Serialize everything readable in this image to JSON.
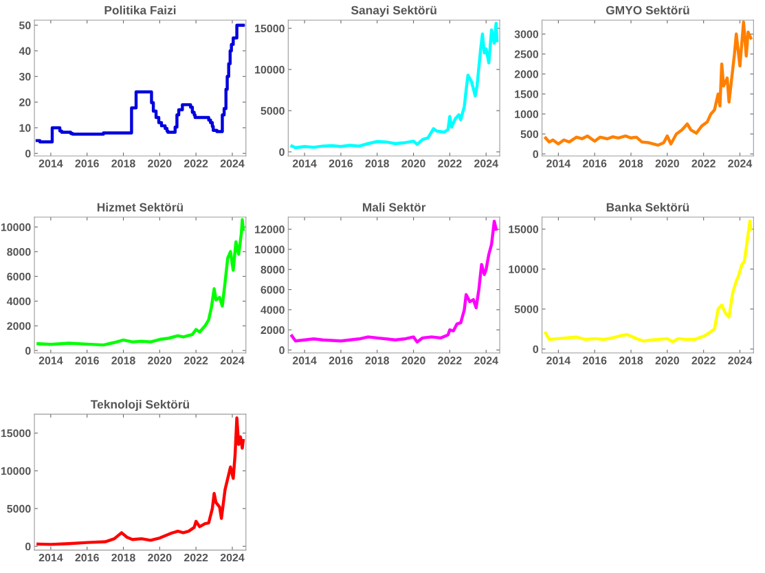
{
  "chart_data": [
    {
      "type": "step",
      "title": "Politika Faizi",
      "xlim": [
        2013.1,
        2024.75
      ],
      "xticks": [
        2014,
        2016,
        2018,
        2020,
        2022,
        2024
      ],
      "ylim": [
        -1,
        52
      ],
      "yticks": [
        0,
        10,
        20,
        30,
        40,
        50
      ],
      "x": [
        2013.25,
        2013.4,
        2014.08,
        2014.5,
        2014.6,
        2015.1,
        2015.2,
        2016.9,
        2018.45,
        2018.7,
        2019.55,
        2019.65,
        2019.8,
        2019.95,
        2020.1,
        2020.3,
        2020.4,
        2020.45,
        2020.85,
        2020.95,
        2021.05,
        2021.25,
        2021.7,
        2021.8,
        2021.9,
        2021.95,
        2022.7,
        2022.8,
        2022.9,
        2022.95,
        2023.15,
        2023.45,
        2023.55,
        2023.65,
        2023.72,
        2023.8,
        2023.88,
        2023.95,
        2024.05,
        2024.25,
        2024.6
      ],
      "series": [
        {
          "color": "#0000dd",
          "values": [
            5,
            4.5,
            10,
            8.75,
            8.25,
            7.75,
            7.5,
            8,
            17.75,
            24,
            19.75,
            16.5,
            14,
            12,
            10.75,
            9.75,
            8.75,
            8.25,
            10.25,
            15,
            17,
            19,
            18,
            16,
            15,
            14,
            13,
            12,
            10.5,
            9,
            8.5,
            15,
            17.5,
            25,
            30,
            35,
            40,
            42.5,
            45,
            50,
            50
          ]
        }
      ]
    },
    {
      "type": "line",
      "title": "Sanayi Sektörü",
      "xlim": [
        2013.1,
        2024.75
      ],
      "xticks": [
        2014,
        2016,
        2018,
        2020,
        2022,
        2024
      ],
      "ylim": [
        -500,
        16000
      ],
      "yticks": [
        0,
        5000,
        10000,
        15000
      ],
      "x": [
        2013.3,
        2013.5,
        2014,
        2014.5,
        2015,
        2015.5,
        2016,
        2016.5,
        2017,
        2017.5,
        2018,
        2018.5,
        2019,
        2019.5,
        2020,
        2020.2,
        2020.5,
        2020.8,
        2021.1,
        2021.3,
        2021.7,
        2021.9,
        2022,
        2022.1,
        2022.3,
        2022.5,
        2022.6,
        2022.8,
        2022.9,
        2023.0,
        2023.2,
        2023.4,
        2023.5,
        2023.7,
        2023.8,
        2023.9,
        2024.0,
        2024.15,
        2024.3,
        2024.45,
        2024.55,
        2024.6
      ],
      "series": [
        {
          "color": "#00ffff",
          "values": [
            700,
            500,
            650,
            550,
            700,
            750,
            650,
            800,
            700,
            1000,
            1250,
            1200,
            1000,
            1100,
            1300,
            900,
            1500,
            1700,
            2800,
            2500,
            2400,
            2700,
            4300,
            3000,
            4000,
            4500,
            3900,
            5500,
            7500,
            9300,
            8500,
            6800,
            8000,
            12500,
            14300,
            12000,
            12500,
            10800,
            14800,
            13200,
            15600,
            13500
          ]
        }
      ]
    },
    {
      "type": "line",
      "title": "GMYO Sektörü",
      "xlim": [
        2013.1,
        2024.75
      ],
      "xticks": [
        2014,
        2016,
        2018,
        2020,
        2022,
        2024
      ],
      "ylim": [
        -50,
        3350
      ],
      "yticks": [
        0,
        500,
        1000,
        1500,
        2000,
        2500,
        3000
      ],
      "x": [
        2013.3,
        2013.5,
        2013.7,
        2014,
        2014.3,
        2014.6,
        2015,
        2015.3,
        2015.6,
        2016,
        2016.3,
        2016.7,
        2017,
        2017.3,
        2017.7,
        2018,
        2018.3,
        2018.6,
        2019,
        2019.5,
        2019.8,
        2020,
        2020.2,
        2020.5,
        2020.8,
        2021.1,
        2021.3,
        2021.6,
        2021.9,
        2022.2,
        2022.4,
        2022.6,
        2022.8,
        2022.9,
        2023.0,
        2023.1,
        2023.3,
        2023.4,
        2023.5,
        2023.7,
        2023.8,
        2023.9,
        2024.0,
        2024.2,
        2024.35,
        2024.45,
        2024.6
      ],
      "series": [
        {
          "color": "#ff8000",
          "values": [
            400,
            300,
            350,
            250,
            350,
            300,
            420,
            380,
            450,
            320,
            420,
            380,
            430,
            400,
            450,
            400,
            420,
            300,
            280,
            220,
            280,
            450,
            250,
            500,
            600,
            750,
            600,
            520,
            700,
            800,
            1000,
            1100,
            1500,
            1200,
            2250,
            1700,
            1900,
            1300,
            1700,
            2500,
            3000,
            2600,
            2200,
            3300,
            2450,
            3050,
            2900
          ]
        }
      ]
    },
    {
      "type": "line",
      "title": "Hizmet Sektörü",
      "xlim": [
        2013.1,
        2024.75
      ],
      "xticks": [
        2014,
        2016,
        2018,
        2020,
        2022,
        2024
      ],
      "ylim": [
        -200,
        10800
      ],
      "yticks": [
        0,
        2000,
        4000,
        6000,
        8000,
        10000
      ],
      "x": [
        2013.3,
        2014,
        2015,
        2016,
        2016.9,
        2017.5,
        2018,
        2018.5,
        2019,
        2019.5,
        2020,
        2020.5,
        2021,
        2021.3,
        2021.8,
        2022,
        2022.2,
        2022.5,
        2022.7,
        2022.85,
        2023.0,
        2023.1,
        2023.3,
        2023.45,
        2023.6,
        2023.75,
        2023.9,
        2024.05,
        2024.2,
        2024.35,
        2024.5,
        2024.55,
        2024.6
      ],
      "series": [
        {
          "color": "#00ff00",
          "values": [
            550,
            500,
            600,
            520,
            450,
            650,
            850,
            700,
            750,
            700,
            900,
            1000,
            1200,
            1100,
            1300,
            1700,
            1500,
            2000,
            2500,
            3500,
            5000,
            4100,
            4300,
            3600,
            5500,
            7500,
            8000,
            6500,
            8800,
            7800,
            9500,
            10600,
            9800
          ]
        }
      ]
    },
    {
      "type": "line",
      "title": "Mali Sektör",
      "xlim": [
        2013.1,
        2024.75
      ],
      "xticks": [
        2014,
        2016,
        2018,
        2020,
        2022,
        2024
      ],
      "ylim": [
        -300,
        13200
      ],
      "yticks": [
        0,
        2000,
        4000,
        6000,
        8000,
        10000,
        12000
      ],
      "x": [
        2013.3,
        2013.5,
        2014,
        2014.5,
        2015,
        2016,
        2016.5,
        2017,
        2017.5,
        2018,
        2018.5,
        2019,
        2019.5,
        2020,
        2020.2,
        2020.5,
        2021,
        2021.5,
        2021.9,
        2022,
        2022.2,
        2022.4,
        2022.6,
        2022.8,
        2022.9,
        2023.1,
        2023.3,
        2023.45,
        2023.6,
        2023.75,
        2023.9,
        2024.0,
        2024.15,
        2024.3,
        2024.45,
        2024.55
      ],
      "series": [
        {
          "color": "#ff00ff",
          "values": [
            1400,
            900,
            1000,
            1100,
            1000,
            900,
            1000,
            1100,
            1300,
            1200,
            1100,
            1000,
            1100,
            1300,
            800,
            1200,
            1300,
            1200,
            1500,
            2000,
            1900,
            2600,
            2700,
            4000,
            5500,
            4800,
            5000,
            4200,
            6000,
            8500,
            7500,
            8000,
            9500,
            10500,
            12800,
            12000
          ]
        }
      ]
    },
    {
      "type": "line",
      "title": "Banka Sektörü",
      "xlim": [
        2013.1,
        2024.75
      ],
      "xticks": [
        2014,
        2016,
        2018,
        2020,
        2022,
        2024
      ],
      "ylim": [
        -500,
        16500
      ],
      "yticks": [
        0,
        5000,
        10000,
        15000
      ],
      "x": [
        2013.3,
        2013.5,
        2014,
        2014.5,
        2015,
        2015.5,
        2016,
        2016.5,
        2017,
        2017.5,
        2017.8,
        2018.3,
        2018.7,
        2019,
        2019.5,
        2020,
        2020.3,
        2020.6,
        2021,
        2021.5,
        2022,
        2022.3,
        2022.6,
        2022.8,
        2023,
        2023.2,
        2023.4,
        2023.6,
        2023.8,
        2023.9,
        2024.1,
        2024.25,
        2024.4,
        2024.55,
        2024.6
      ],
      "series": [
        {
          "color": "#ffff00",
          "values": [
            2000,
            1200,
            1300,
            1400,
            1500,
            1200,
            1300,
            1200,
            1400,
            1700,
            1800,
            1300,
            1000,
            1100,
            1200,
            1300,
            900,
            1300,
            1200,
            1200,
            1600,
            2000,
            2500,
            5000,
            5500,
            4500,
            4000,
            7000,
            8500,
            9000,
            10500,
            11000,
            13500,
            16000,
            15000
          ]
        }
      ]
    },
    {
      "type": "line",
      "title": "Teknoloji Sektörü",
      "xlim": [
        2013.1,
        2024.75
      ],
      "xticks": [
        2014,
        2016,
        2018,
        2020,
        2022,
        2024
      ],
      "ylim": [
        -500,
        17500
      ],
      "yticks": [
        0,
        5000,
        10000,
        15000
      ],
      "x": [
        2013.3,
        2014,
        2015,
        2016,
        2017,
        2017.5,
        2017.9,
        2018.2,
        2018.5,
        2019,
        2019.5,
        2020,
        2020.3,
        2020.6,
        2021,
        2021.3,
        2021.6,
        2021.9,
        2022.0,
        2022.2,
        2022.5,
        2022.7,
        2022.9,
        2023.0,
        2023.1,
        2023.3,
        2023.4,
        2023.6,
        2023.8,
        2023.9,
        2024.05,
        2024.15,
        2024.25,
        2024.35,
        2024.45,
        2024.55,
        2024.6
      ],
      "series": [
        {
          "color": "#ff0000",
          "values": [
            300,
            250,
            350,
            500,
            600,
            1000,
            1800,
            1200,
            900,
            1000,
            800,
            1100,
            1400,
            1700,
            2000,
            1800,
            2000,
            2500,
            3300,
            2600,
            3000,
            3100,
            5000,
            7000,
            5800,
            5200,
            3700,
            7500,
            9500,
            10500,
            9000,
            12000,
            17000,
            13500,
            14500,
            13000,
            14000
          ]
        }
      ]
    }
  ]
}
